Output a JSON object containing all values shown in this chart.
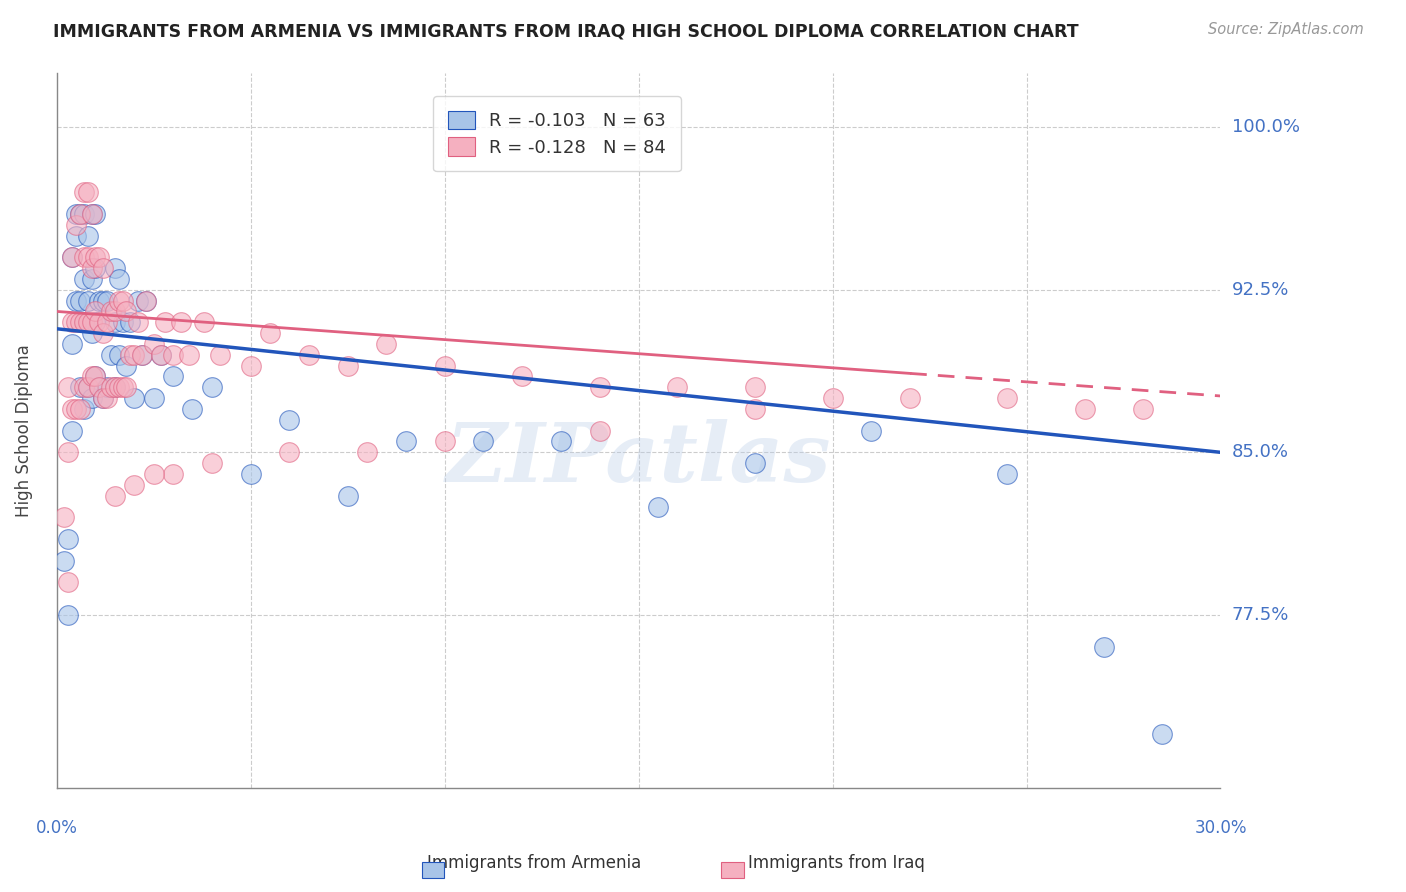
{
  "title": "IMMIGRANTS FROM ARMENIA VS IMMIGRANTS FROM IRAQ HIGH SCHOOL DIPLOMA CORRELATION CHART",
  "source": "Source: ZipAtlas.com",
  "ylabel": "High School Diploma",
  "ytick_labels": [
    "100.0%",
    "92.5%",
    "85.0%",
    "77.5%"
  ],
  "ytick_values": [
    1.0,
    0.925,
    0.85,
    0.775
  ],
  "xmin": 0.0,
  "xmax": 0.3,
  "ymin": 0.695,
  "ymax": 1.025,
  "legend_r_armenia": "R = -0.103",
  "legend_n_armenia": "N = 63",
  "legend_r_iraq": "R = -0.128",
  "legend_n_iraq": "N = 84",
  "color_armenia": "#A8C4E8",
  "color_iraq": "#F5B0C0",
  "trendline_armenia_color": "#2255BB",
  "trendline_iraq_color": "#E06080",
  "watermark": "ZIPatlas",
  "armenia_x": [
    0.002,
    0.003,
    0.003,
    0.004,
    0.004,
    0.004,
    0.005,
    0.005,
    0.005,
    0.006,
    0.006,
    0.006,
    0.007,
    0.007,
    0.007,
    0.007,
    0.008,
    0.008,
    0.008,
    0.009,
    0.009,
    0.009,
    0.009,
    0.01,
    0.01,
    0.01,
    0.01,
    0.011,
    0.011,
    0.012,
    0.012,
    0.013,
    0.013,
    0.014,
    0.015,
    0.015,
    0.015,
    0.016,
    0.016,
    0.017,
    0.018,
    0.019,
    0.02,
    0.021,
    0.022,
    0.023,
    0.025,
    0.027,
    0.03,
    0.035,
    0.04,
    0.05,
    0.06,
    0.075,
    0.09,
    0.11,
    0.13,
    0.155,
    0.18,
    0.21,
    0.245,
    0.27,
    0.285
  ],
  "armenia_y": [
    0.8,
    0.81,
    0.775,
    0.86,
    0.9,
    0.94,
    0.92,
    0.95,
    0.96,
    0.88,
    0.92,
    0.96,
    0.87,
    0.91,
    0.93,
    0.96,
    0.88,
    0.92,
    0.95,
    0.875,
    0.905,
    0.93,
    0.96,
    0.885,
    0.91,
    0.935,
    0.96,
    0.88,
    0.92,
    0.875,
    0.92,
    0.88,
    0.92,
    0.895,
    0.88,
    0.91,
    0.935,
    0.895,
    0.93,
    0.91,
    0.89,
    0.91,
    0.875,
    0.92,
    0.895,
    0.92,
    0.875,
    0.895,
    0.885,
    0.87,
    0.88,
    0.84,
    0.865,
    0.83,
    0.855,
    0.855,
    0.855,
    0.825,
    0.845,
    0.86,
    0.84,
    0.76,
    0.72
  ],
  "iraq_x": [
    0.002,
    0.003,
    0.003,
    0.003,
    0.004,
    0.004,
    0.004,
    0.005,
    0.005,
    0.005,
    0.006,
    0.006,
    0.006,
    0.007,
    0.007,
    0.007,
    0.007,
    0.008,
    0.008,
    0.008,
    0.008,
    0.009,
    0.009,
    0.009,
    0.009,
    0.01,
    0.01,
    0.01,
    0.011,
    0.011,
    0.011,
    0.012,
    0.012,
    0.012,
    0.013,
    0.013,
    0.014,
    0.014,
    0.015,
    0.015,
    0.016,
    0.016,
    0.017,
    0.017,
    0.018,
    0.018,
    0.019,
    0.02,
    0.021,
    0.022,
    0.023,
    0.025,
    0.027,
    0.028,
    0.03,
    0.032,
    0.034,
    0.038,
    0.042,
    0.05,
    0.055,
    0.065,
    0.075,
    0.085,
    0.1,
    0.12,
    0.14,
    0.16,
    0.18,
    0.2,
    0.22,
    0.245,
    0.265,
    0.28,
    0.18,
    0.14,
    0.1,
    0.08,
    0.06,
    0.04,
    0.03,
    0.025,
    0.02,
    0.015
  ],
  "iraq_y": [
    0.82,
    0.85,
    0.88,
    0.79,
    0.87,
    0.91,
    0.94,
    0.87,
    0.91,
    0.955,
    0.87,
    0.91,
    0.96,
    0.88,
    0.91,
    0.94,
    0.97,
    0.88,
    0.91,
    0.94,
    0.97,
    0.885,
    0.91,
    0.935,
    0.96,
    0.885,
    0.915,
    0.94,
    0.88,
    0.91,
    0.94,
    0.875,
    0.905,
    0.935,
    0.875,
    0.91,
    0.88,
    0.915,
    0.88,
    0.915,
    0.88,
    0.92,
    0.88,
    0.92,
    0.88,
    0.915,
    0.895,
    0.895,
    0.91,
    0.895,
    0.92,
    0.9,
    0.895,
    0.91,
    0.895,
    0.91,
    0.895,
    0.91,
    0.895,
    0.89,
    0.905,
    0.895,
    0.89,
    0.9,
    0.89,
    0.885,
    0.88,
    0.88,
    0.88,
    0.875,
    0.875,
    0.875,
    0.87,
    0.87,
    0.87,
    0.86,
    0.855,
    0.85,
    0.85,
    0.845,
    0.84,
    0.84,
    0.835,
    0.83
  ]
}
